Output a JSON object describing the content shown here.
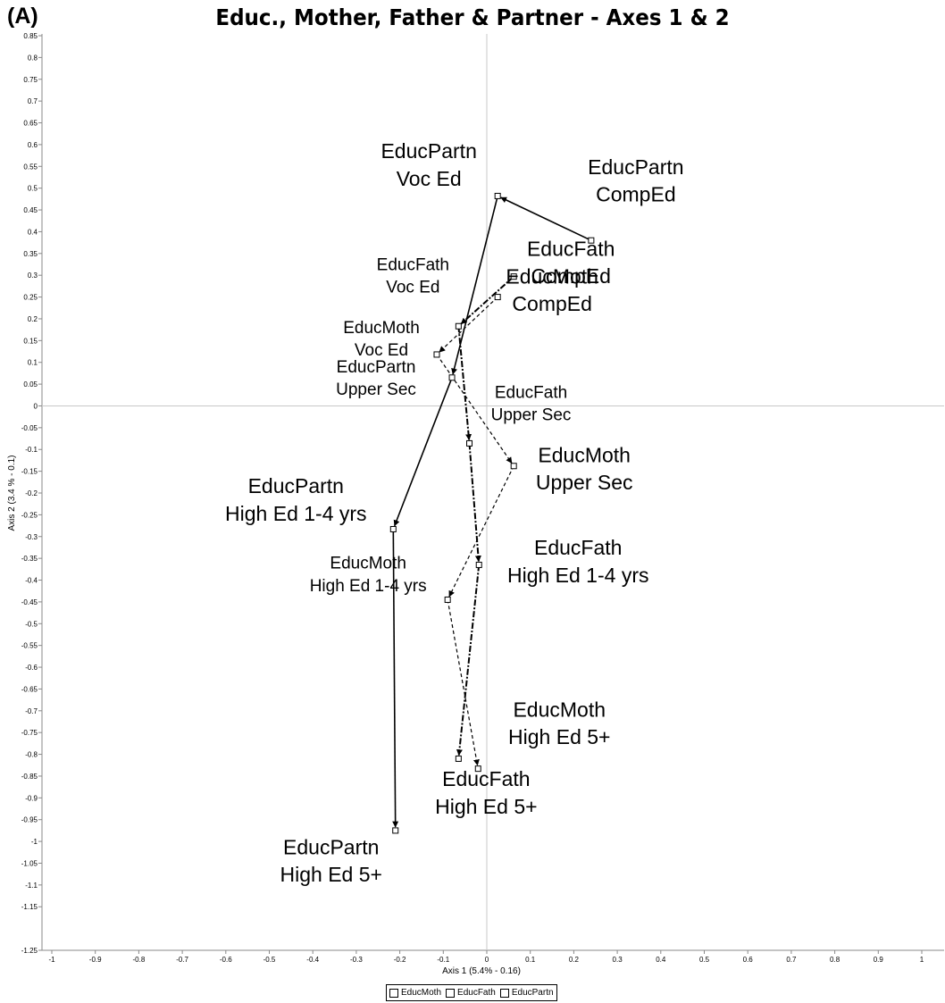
{
  "panel_label": "(A)",
  "chart_data": {
    "type": "scatter",
    "title": "Educ., Mother, Father & Partner - Axes 1 & 2",
    "xlabel": "Axis 1 (5.4% - 0.16)",
    "ylabel": "Axis 2 (3.4 % - 0.1)",
    "xlim": [
      -1,
      1
    ],
    "ylim": [
      -1.25,
      0.85
    ],
    "x_ticks": [
      "-1",
      "-0.9",
      "-0.8",
      "-0.7",
      "-0.6",
      "-0.5",
      "-0.4",
      "-0.3",
      "-0.2",
      "-0.1",
      "0",
      "0.1",
      "0.2",
      "0.3",
      "0.4",
      "0.5",
      "0.6",
      "0.7",
      "0.8",
      "0.9",
      "1"
    ],
    "y_ticks": [
      "0.85",
      "0.8",
      "0.75",
      "0.7",
      "0.65",
      "0.6",
      "0.55",
      "0.5",
      "0.45",
      "0.4",
      "0.35",
      "0.3",
      "0.25",
      "0.2",
      "0.15",
      "0.1",
      "0.05",
      "0",
      "-0.05",
      "-0.1",
      "-0.15",
      "-0.2",
      "-0.25",
      "-0.3",
      "-0.35",
      "-0.4",
      "-0.45",
      "-0.5",
      "-0.55",
      "-0.6",
      "-0.65",
      "-0.7",
      "-0.75",
      "-0.8",
      "-0.85",
      "-0.9",
      "-0.95",
      "-1",
      "-1.05",
      "-1.1",
      "-1.15",
      "-1.25"
    ],
    "origin_lines": true,
    "legend_position": "bottom-center",
    "series": [
      {
        "name": "EducMoth",
        "line_style": "dashed",
        "points": [
          {
            "label": [
              "EducMoth",
              "CompEd"
            ],
            "x": 0.025,
            "y": 0.25
          },
          {
            "label": [
              "EducMoth",
              "Voc Ed"
            ],
            "x": -0.115,
            "y": 0.118
          },
          {
            "label": [
              "EducMoth",
              "Upper Sec"
            ],
            "x": 0.062,
            "y": -0.138
          },
          {
            "label": [
              "EducMoth",
              "High Ed 1-4 yrs"
            ],
            "x": -0.09,
            "y": -0.445
          },
          {
            "label": [
              "EducMoth",
              "High Ed 5+"
            ],
            "x": -0.02,
            "y": -0.833
          }
        ]
      },
      {
        "name": "EducFath",
        "line_style": "dash-dot",
        "points": [
          {
            "label": [
              "EducFath",
              "CompEd"
            ],
            "x": 0.062,
            "y": 0.297
          },
          {
            "label": [
              "EducFath",
              "Voc Ed"
            ],
            "x": -0.065,
            "y": 0.183
          },
          {
            "label": [
              "EducFath",
              "Upper Sec"
            ],
            "x": -0.04,
            "y": -0.086
          },
          {
            "label": [
              "EducFath",
              "High Ed 1-4 yrs"
            ],
            "x": -0.018,
            "y": -0.365
          },
          {
            "label": [
              "EducFath",
              "High Ed 5+"
            ],
            "x": -0.065,
            "y": -0.81
          }
        ]
      },
      {
        "name": "EducPartn",
        "line_style": "solid",
        "points": [
          {
            "label": [
              "EducPartn",
              "CompEd"
            ],
            "x": 0.24,
            "y": 0.38
          },
          {
            "label": [
              "EducPartn",
              "Voc Ed"
            ],
            "x": 0.025,
            "y": 0.482
          },
          {
            "label": [
              "EducPartn",
              "Upper Sec"
            ],
            "x": -0.08,
            "y": 0.065
          },
          {
            "label": [
              "EducPartn",
              "High Ed 1-4 yrs"
            ],
            "x": -0.215,
            "y": -0.283
          },
          {
            "label": [
              "EducPartn",
              "High Ed 5+"
            ],
            "x": -0.21,
            "y": -0.975
          }
        ]
      }
    ]
  }
}
